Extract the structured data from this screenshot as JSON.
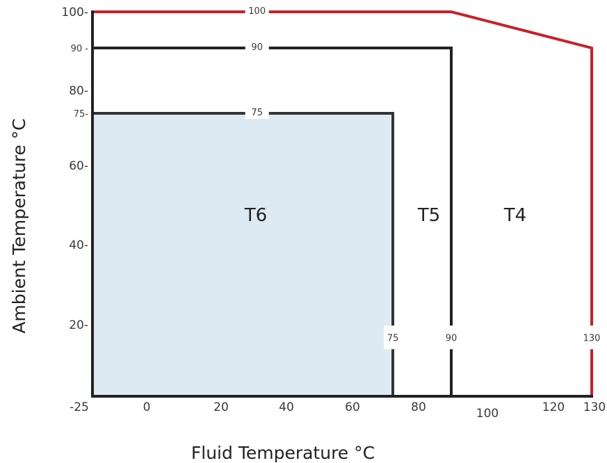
{
  "chart_data": {
    "type": "area",
    "title": "",
    "xlabel": "Fluid Temperature °C",
    "ylabel": "Ambient Temperature °C",
    "x_ticks": [
      "-25",
      "0",
      "20",
      "40",
      "60",
      "80",
      "100",
      "120",
      "130"
    ],
    "y_ticks": [
      "20-",
      "40-",
      "60-",
      "75-",
      "80-",
      "90 -",
      "100-"
    ],
    "zones": [
      {
        "name": "T6",
        "color": "#dde9f3",
        "outline_color": "#333333",
        "fluid_max_label": "75",
        "ambient_max_label": "75",
        "boundary": [
          [
            -25,
            75
          ],
          [
            75,
            75
          ],
          [
            75,
            -25
          ]
        ]
      },
      {
        "name": "T5",
        "color": "#ffffff",
        "outline_color": "#222222",
        "fluid_max_label": "90",
        "ambient_max_label": "90",
        "boundary": [
          [
            -25,
            90
          ],
          [
            90,
            90
          ],
          [
            90,
            -25
          ]
        ]
      },
      {
        "name": "T4",
        "color": "#ffffff",
        "outline_color": "#c8202a",
        "fluid_max_label": "130",
        "ambient_max_label": "100",
        "boundary": [
          [
            -25,
            100
          ],
          [
            90,
            100
          ],
          [
            130,
            90
          ],
          [
            130,
            -25
          ]
        ]
      }
    ]
  }
}
